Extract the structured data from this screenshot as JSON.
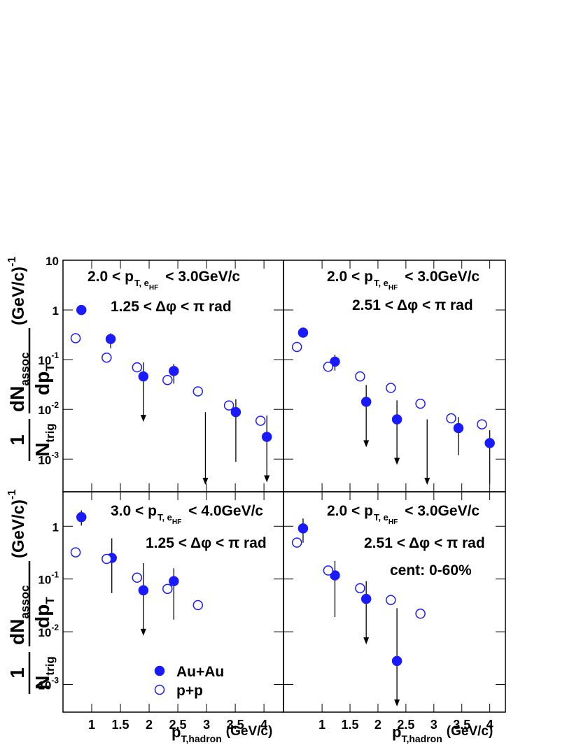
{
  "chart_data": [
    {
      "type": "scatter",
      "log_y": true,
      "xlim": [
        0.5,
        4.34
      ],
      "ylim": [
        0.00022,
        10
      ],
      "xticks": [
        1,
        1.5,
        2,
        2.5,
        3,
        3.5,
        4
      ],
      "yticks": [
        10,
        1,
        {
          "value": 0.1,
          "label": "10",
          "exponent": "-1"
        },
        {
          "value": 0.01,
          "label": "10",
          "exponent": "-2"
        },
        {
          "value": 0.001,
          "label": "10",
          "exponent": "-3"
        }
      ],
      "annotations": [
        [
          {
            "text": "2.0 < p"
          },
          {
            "text": "T, e",
            "script": "sub"
          },
          {
            "text": "HF",
            "script": "sub2"
          },
          {
            "text": "< 3.0GeV/c"
          }
        ],
        [
          {
            "text": "1.25 < Δφ <  π rad"
          }
        ]
      ],
      "ylabel": {
        "one": "1",
        "n": "N",
        "n_sub": "trig",
        "dn": "dN",
        "dn_sub": "assoc",
        "dp": "dp",
        "dp_sub": "T",
        "unit": "(GeV/c)",
        "unit_sup": "-1"
      },
      "series": [
        {
          "marker": "filled",
          "color": "#1a1aff",
          "x": [
            0.82,
            1.33,
            1.9,
            2.43,
            2.98,
            3.51,
            4.05
          ],
          "values": [
            1.0,
            0.26,
            0.046,
            0.059,
            null,
            0.0088,
            0.0028
          ],
          "ymax": [
            1.2,
            0.34,
            0.088,
            0.082,
            0.0088,
            0.016,
            0.0075
          ],
          "ymin": [
            0.82,
            0.17,
            null,
            0.033,
            null,
            0.00088,
            null
          ]
        },
        {
          "marker": "open",
          "color": "#1a1aff",
          "x": [
            0.72,
            1.26,
            1.79,
            2.32,
            2.85,
            3.39,
            3.94
          ],
          "values": [
            0.27,
            0.11,
            0.07,
            0.039,
            0.023,
            0.012,
            0.0059
          ]
        }
      ]
    },
    {
      "type": "scatter",
      "log_y": true,
      "xlim": [
        0.31,
        4.28
      ],
      "ylim": [
        0.00022,
        10
      ],
      "xticks": [
        1,
        1.5,
        2,
        2.5,
        3,
        3.5,
        4
      ],
      "yticks": [
        10,
        1,
        0.1,
        0.01,
        0.001
      ],
      "annotations": [
        [
          {
            "text": "2.0 < p"
          },
          {
            "text": "T, e",
            "script": "sub"
          },
          {
            "text": "HF",
            "script": "sub2"
          },
          {
            "text": "< 3.0GeV/c"
          }
        ],
        [
          {
            "text": "2.51 < Δφ < π rad"
          }
        ]
      ],
      "series": [
        {
          "marker": "filled",
          "color": "#1a1aff",
          "x": [
            0.66,
            1.23,
            1.79,
            2.34,
            2.88,
            3.44,
            4.0
          ],
          "values": [
            0.35,
            0.091,
            0.0142,
            0.0063,
            null,
            0.0042,
            0.0021
          ],
          "ymax": [
            0.4,
            0.126,
            0.031,
            0.0152,
            0.0063,
            0.007,
            0.0038
          ],
          "ymin": [
            0.31,
            0.06,
            null,
            null,
            null,
            0.0012,
            0.00032
          ]
        },
        {
          "marker": "open",
          "color": "#1a1aff",
          "x": [
            0.55,
            1.11,
            1.68,
            2.23,
            2.76,
            3.31,
            3.86
          ],
          "values": [
            0.18,
            0.072,
            0.046,
            0.027,
            0.013,
            0.0066,
            0.005
          ]
        }
      ]
    },
    {
      "type": "scatter",
      "log_y": true,
      "xlim": [
        0.5,
        4.34
      ],
      "ylim": [
        0.0003,
        4.5
      ],
      "xticks": [
        1,
        1.5,
        2,
        2.5,
        3,
        3.5,
        4
      ],
      "yticks": [
        1,
        {
          "value": 0.1,
          "label": "10",
          "exponent": "-1"
        },
        {
          "value": 0.01,
          "label": "10",
          "exponent": "-2"
        },
        {
          "value": 0.001,
          "label": "10",
          "exponent": "-3"
        }
      ],
      "annotations": [
        [
          {
            "text": "3.0 < p"
          },
          {
            "text": "T, e",
            "script": "sub"
          },
          {
            "text": "HF",
            "script": "sub2"
          },
          {
            "text": "< 4.0GeV/c"
          }
        ],
        [
          {
            "text": "1.25 < Δφ < π rad"
          }
        ]
      ],
      "ylabel": {
        "one": "1",
        "n": "N",
        "n_sub": "trig",
        "dn": "dN",
        "dn_sub": "assoc",
        "dp": "dp",
        "dp_sub": "T",
        "unit": "(GeV/c)",
        "unit_sup": "-1"
      },
      "xlabel": {
        "p": "p",
        "p_sub": "T,hadron",
        "unit": "(GeV/c)"
      },
      "series": [
        {
          "name": "Au+Au",
          "marker": "filled",
          "color": "#1a1aff",
          "x": [
            0.82,
            1.35,
            1.9,
            2.43
          ],
          "values": [
            1.49,
            0.25,
            0.061,
            0.091
          ],
          "ymax": [
            2.0,
            0.59,
            0.2,
            0.16
          ],
          "ymin": [
            1.03,
            0.054,
            null,
            0.017
          ]
        },
        {
          "name": "p+p",
          "marker": "open",
          "color": "#1a1aff",
          "x": [
            0.72,
            1.26,
            1.79,
            2.32,
            2.85
          ],
          "values": [
            0.32,
            0.24,
            0.106,
            0.065,
            0.032
          ]
        }
      ]
    },
    {
      "type": "scatter",
      "log_y": true,
      "xlim": [
        0.31,
        4.28
      ],
      "ylim": [
        0.0003,
        4.5
      ],
      "xticks": [
        1,
        1.5,
        2,
        2.5,
        3,
        3.5,
        4
      ],
      "yticks": [
        1,
        0.1,
        0.01,
        0.001
      ],
      "annotations": [
        [
          {
            "text": "2.0 < p"
          },
          {
            "text": "T, e",
            "script": "sub"
          },
          {
            "text": "HF",
            "script": "sub2"
          },
          {
            "text": "< 3.0GeV/c"
          }
        ],
        [
          {
            "text": "2.51 < Δφ < π rad"
          }
        ],
        [
          {
            "text": "cent: 0-60%"
          }
        ]
      ],
      "xlabel": {
        "p": "p",
        "p_sub": "T,hadron",
        "unit": "(GeV/c)"
      },
      "series": [
        {
          "marker": "filled",
          "color": "#1a1aff",
          "x": [
            0.66,
            1.23,
            1.79,
            2.34
          ],
          "values": [
            0.91,
            0.117,
            0.042,
            0.0028
          ],
          "ymax": [
            1.4,
            0.22,
            0.091,
            0.028
          ],
          "ymin": [
            0.49,
            0.019,
            null,
            null
          ]
        },
        {
          "marker": "open",
          "color": "#1a1aff",
          "x": [
            0.55,
            1.11,
            1.68,
            2.23,
            2.76
          ],
          "values": [
            0.49,
            0.145,
            0.067,
            0.04,
            0.022
          ]
        }
      ]
    }
  ]
}
